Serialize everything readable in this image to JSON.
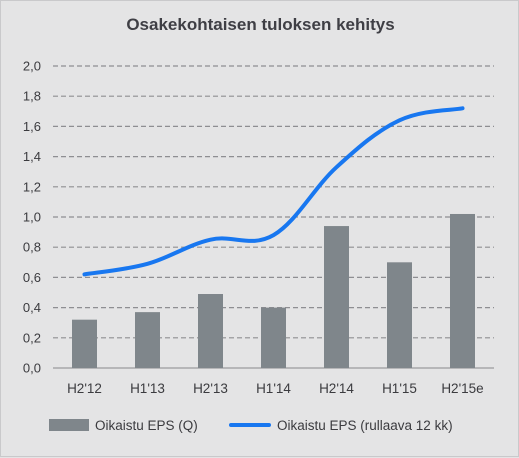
{
  "chart_data": {
    "type": "bar",
    "title": "Osakekohtaisen tuloksen kehitys",
    "categories": [
      "H2'12",
      "H1'13",
      "H2'13",
      "H1'14",
      "H2'14",
      "H1'15",
      "H2'15e"
    ],
    "y_ticks": [
      "0,0",
      "0,2",
      "0,4",
      "0,6",
      "0,8",
      "1,0",
      "1,2",
      "1,4",
      "1,6",
      "1,8",
      "2,0"
    ],
    "ylim": [
      0,
      2.0
    ],
    "grid": true,
    "legend_position": "bottom",
    "series": [
      {
        "name": "Oikaistu EPS (Q)",
        "type": "bar",
        "color": "#7f868b",
        "values": [
          0.32,
          0.37,
          0.49,
          0.4,
          0.94,
          0.7,
          1.02
        ]
      },
      {
        "name": "Oikaistu EPS (rullaava 12 kk)",
        "type": "line",
        "color": "#1877f0",
        "values": [
          0.62,
          0.69,
          0.85,
          0.88,
          1.33,
          1.64,
          1.72
        ]
      }
    ]
  }
}
